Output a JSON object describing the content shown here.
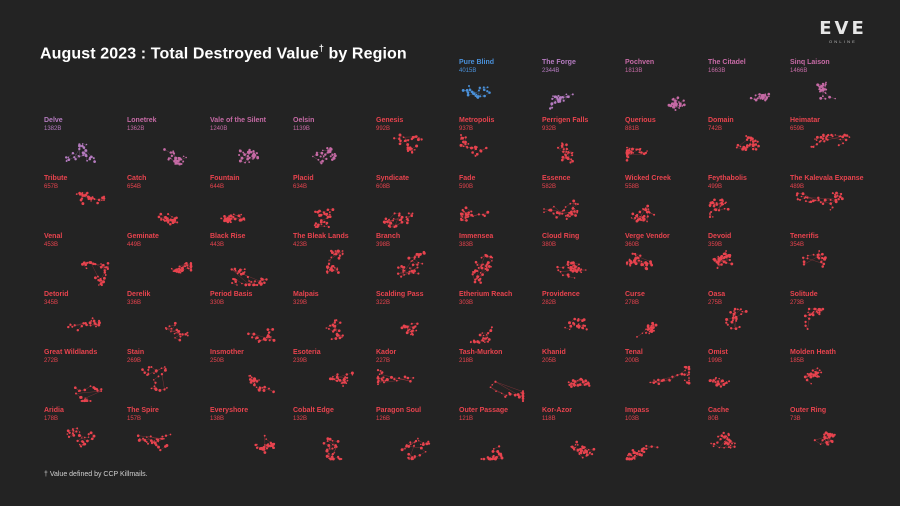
{
  "title": "August 2023 : Total Destroyed Value",
  "title_mark": "†",
  "title_suffix": " by Region",
  "footnote": "† Value defined by CCP Killmails.",
  "logo": {
    "wordmark": "EVE",
    "sub": "ONLINE"
  },
  "colors": {
    "background": "#232323",
    "default": "#e8434e",
    "highlight_blue": "#4a90d9",
    "highlight_purple": "#b57bc0",
    "highlight_magenta": "#c66aa5"
  },
  "chart_data": {
    "type": "small-multiples",
    "title": "August 2023 : Total Destroyed Value† by Region",
    "unit": "B",
    "regions": [
      {
        "name": "Pure Blind",
        "value": "4015B",
        "color": "blue"
      },
      {
        "name": "The Forge",
        "value": "2344B",
        "color": "purple"
      },
      {
        "name": "Pochven",
        "value": "1813B",
        "color": "magenta"
      },
      {
        "name": "The Citadel",
        "value": "1663B",
        "color": "magenta"
      },
      {
        "name": "Sinq Laison",
        "value": "1466B",
        "color": "magenta"
      },
      {
        "name": "Delve",
        "value": "1382B",
        "color": "purple"
      },
      {
        "name": "Lonetrek",
        "value": "1362B",
        "color": "magenta"
      },
      {
        "name": "Vale of the Silent",
        "value": "1240B",
        "color": "magenta"
      },
      {
        "name": "Oelsin",
        "value": "1139B",
        "color": "magenta"
      },
      {
        "name": "Genesis",
        "value": "992B"
      },
      {
        "name": "Metropolis",
        "value": "937B"
      },
      {
        "name": "Perrigen Falls",
        "value": "932B"
      },
      {
        "name": "Querious",
        "value": "881B"
      },
      {
        "name": "Domain",
        "value": "742B"
      },
      {
        "name": "Heimatar",
        "value": "659B"
      },
      {
        "name": "Tribute",
        "value": "657B"
      },
      {
        "name": "Catch",
        "value": "654B"
      },
      {
        "name": "Fountain",
        "value": "644B"
      },
      {
        "name": "Placid",
        "value": "634B"
      },
      {
        "name": "Syndicate",
        "value": "608B"
      },
      {
        "name": "Fade",
        "value": "590B"
      },
      {
        "name": "Essence",
        "value": "582B"
      },
      {
        "name": "Wicked Creek",
        "value": "558B"
      },
      {
        "name": "Feythabolis",
        "value": "499B"
      },
      {
        "name": "The Kalevala Expanse",
        "value": "489B"
      },
      {
        "name": "Venal",
        "value": "453B"
      },
      {
        "name": "Geminate",
        "value": "449B"
      },
      {
        "name": "Black Rise",
        "value": "443B"
      },
      {
        "name": "The Bleak Lands",
        "value": "423B"
      },
      {
        "name": "Branch",
        "value": "398B"
      },
      {
        "name": "Immensea",
        "value": "383B"
      },
      {
        "name": "Cloud Ring",
        "value": "380B"
      },
      {
        "name": "Verge Vendor",
        "value": "360B"
      },
      {
        "name": "Devoid",
        "value": "359B"
      },
      {
        "name": "Tenerifis",
        "value": "354B"
      },
      {
        "name": "Detorid",
        "value": "345B"
      },
      {
        "name": "Derelik",
        "value": "336B"
      },
      {
        "name": "Period Basis",
        "value": "330B"
      },
      {
        "name": "Malpais",
        "value": "329B"
      },
      {
        "name": "Scalding Pass",
        "value": "322B"
      },
      {
        "name": "Etherium Reach",
        "value": "303B"
      },
      {
        "name": "Providence",
        "value": "282B"
      },
      {
        "name": "Curse",
        "value": "278B"
      },
      {
        "name": "Oasa",
        "value": "275B"
      },
      {
        "name": "Solitude",
        "value": "273B"
      },
      {
        "name": "Great Wildlands",
        "value": "272B"
      },
      {
        "name": "Stain",
        "value": "269B"
      },
      {
        "name": "Insmother",
        "value": "250B"
      },
      {
        "name": "Esoteria",
        "value": "239B"
      },
      {
        "name": "Kador",
        "value": "227B"
      },
      {
        "name": "Tash-Murkon",
        "value": "218B"
      },
      {
        "name": "Khanid",
        "value": "205B"
      },
      {
        "name": "Tenal",
        "value": "200B"
      },
      {
        "name": "Omist",
        "value": "199B"
      },
      {
        "name": "Molden Heath",
        "value": "185B"
      },
      {
        "name": "Aridia",
        "value": "178B"
      },
      {
        "name": "The Spire",
        "value": "157B"
      },
      {
        "name": "Everyshore",
        "value": "138B"
      },
      {
        "name": "Cobalt Edge",
        "value": "132B"
      },
      {
        "name": "Paragon Soul",
        "value": "126B"
      },
      {
        "name": "Outer Passage",
        "value": "121B"
      },
      {
        "name": "Kor-Azor",
        "value": "118B"
      },
      {
        "name": "Impass",
        "value": "103B"
      },
      {
        "name": "Cache",
        "value": "80B"
      },
      {
        "name": "Outer Ring",
        "value": "73B"
      }
    ]
  }
}
